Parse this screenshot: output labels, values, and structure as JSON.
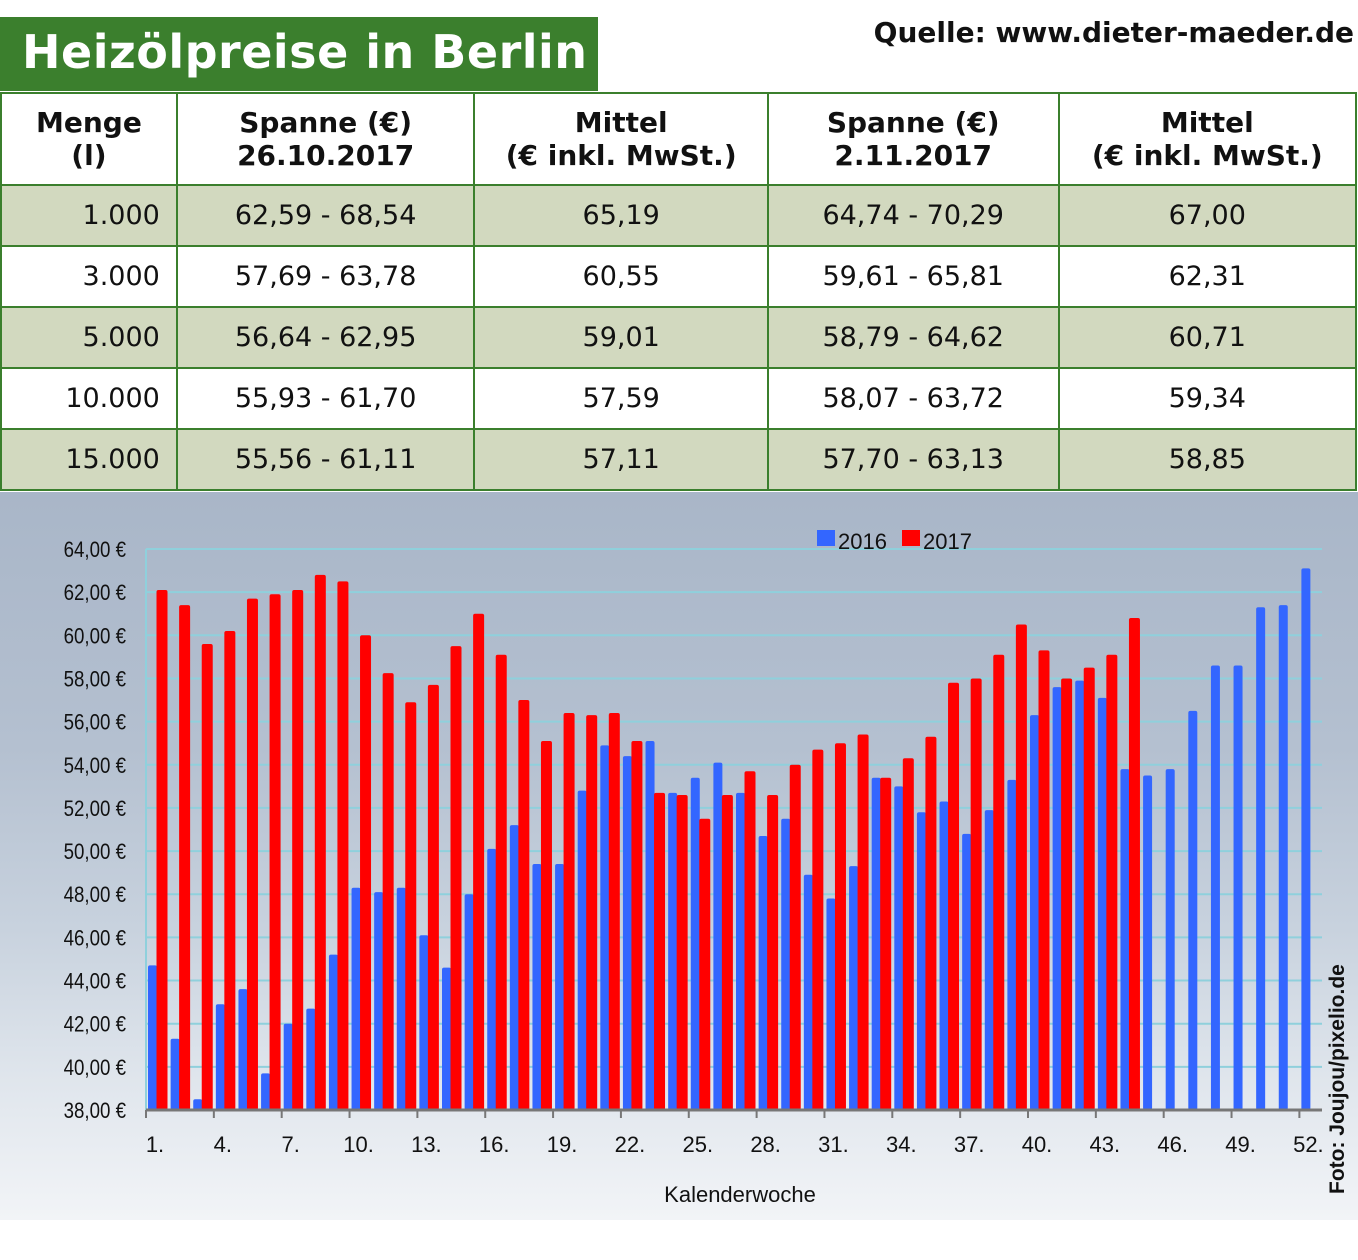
{
  "header": {
    "title": "Heizölpreise in Berlin",
    "source": "Quelle: www.dieter-maeder.de"
  },
  "table": {
    "headers": [
      [
        "Menge",
        "(l)"
      ],
      [
        "Spanne (€)",
        "26.10.2017"
      ],
      [
        "Mittel",
        "(€ inkl. MwSt.)"
      ],
      [
        "Spanne (€)",
        "2.11.2017"
      ],
      [
        "Mittel",
        "(€ inkl. MwSt.)"
      ]
    ],
    "rows": [
      [
        "1.000",
        "62,59 - 68,54",
        "65,19",
        "64,74 - 70,29",
        "67,00"
      ],
      [
        "3.000",
        "57,69 - 63,78",
        "60,55",
        "59,61 - 65,81",
        "62,31"
      ],
      [
        "5.000",
        "56,64 - 62,95",
        "59,01",
        "58,79 - 64,62",
        "60,71"
      ],
      [
        "10.000",
        "55,93 - 61,70",
        "57,59",
        "58,07 - 63,72",
        "59,34"
      ],
      [
        "15.000",
        "55,56 - 61,11",
        "57,11",
        "57,70 - 63,13",
        "58,85"
      ]
    ]
  },
  "photo_credit": "Foto: Joujou/pixelio.de",
  "chart_data": {
    "type": "bar",
    "xlabel": "Kalenderwoche",
    "ylabel": "",
    "ylim": [
      38,
      64
    ],
    "yticks": [
      "38,00 €",
      "40,00 €",
      "42,00 €",
      "44,00 €",
      "46,00 €",
      "48,00 €",
      "50,00 €",
      "52,00 €",
      "54,00 €",
      "56,00 €",
      "58,00 €",
      "60,00 €",
      "62,00 €",
      "64,00 €"
    ],
    "xticks": [
      "1.",
      "4.",
      "7.",
      "10.",
      "13.",
      "16.",
      "19.",
      "22.",
      "25.",
      "28.",
      "31.",
      "34.",
      "37.",
      "40.",
      "43.",
      "46.",
      "49.",
      "52."
    ],
    "legend_position": "top",
    "grid": true,
    "series": [
      {
        "name": "2016",
        "color": "#3366ff",
        "values": [
          44.7,
          41.3,
          38.5,
          42.9,
          43.6,
          39.7,
          42.0,
          42.7,
          45.2,
          48.3,
          48.1,
          48.3,
          46.1,
          44.6,
          48.0,
          50.1,
          51.2,
          49.4,
          49.4,
          52.8,
          54.9,
          54.4,
          55.1,
          52.7,
          53.4,
          54.1,
          52.7,
          50.7,
          51.5,
          48.9,
          47.8,
          49.3,
          53.4,
          53.0,
          51.8,
          52.3,
          50.8,
          51.9,
          53.3,
          56.3,
          57.6,
          57.9,
          57.1,
          53.8,
          53.5,
          53.8,
          56.5,
          58.6,
          58.6,
          61.3,
          61.4,
          63.1
        ]
      },
      {
        "name": "2017",
        "color": "#ff0000",
        "values": [
          62.1,
          61.4,
          59.6,
          60.2,
          61.7,
          61.9,
          62.1,
          62.8,
          62.5,
          60.0,
          58.25,
          56.9,
          57.7,
          59.5,
          61.0,
          59.1,
          57.0,
          55.1,
          56.4,
          56.3,
          56.4,
          55.1,
          52.7,
          52.6,
          51.5,
          52.6,
          53.7,
          52.6,
          54.0,
          54.7,
          55.0,
          55.4,
          53.4,
          54.3,
          55.3,
          57.8,
          58.0,
          59.1,
          60.5,
          59.3,
          58.0,
          58.5,
          59.1,
          60.8
        ]
      }
    ]
  }
}
